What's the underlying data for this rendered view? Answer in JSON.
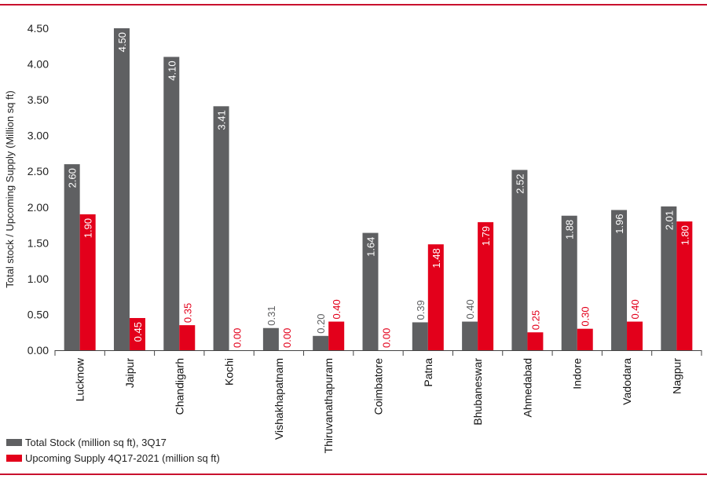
{
  "chart_data": {
    "type": "bar",
    "ylabel": "Total stock / Upcoming Supply  (Million sq ft)",
    "ylim": [
      0,
      4.5
    ],
    "yticks": [
      "0.00",
      "0.50",
      "1.00",
      "1.50",
      "2.00",
      "2.50",
      "3.00",
      "3.50",
      "4.00",
      "4.50"
    ],
    "categories": [
      "Lucknow",
      "Jaipur",
      "Chandigarh",
      "Kochi",
      "Vishakhapatnam",
      "Thiruvanathapuram",
      "Coimbatore",
      "Patna",
      "Bhubaneswar",
      "Ahmedabad",
      "Indore",
      "Vadodara",
      "Nagpur"
    ],
    "series": [
      {
        "name": "Total Stock (million sq ft), 3Q17",
        "color": "#5f6062",
        "values": [
          2.6,
          4.5,
          4.1,
          3.41,
          0.31,
          0.2,
          1.64,
          0.39,
          0.4,
          2.52,
          1.88,
          1.96,
          2.01
        ],
        "labels": [
          "2.60",
          "4.50",
          "4.10",
          "3.41",
          "0.31",
          "0.20",
          "1.64",
          "0.39",
          "0.40",
          "2.52",
          "1.88",
          "1.96",
          "2.01"
        ]
      },
      {
        "name": "Upcoming Supply 4Q17-2021 (million sq ft)",
        "color": "#e3001b",
        "values": [
          1.9,
          0.45,
          0.35,
          0.0,
          0.0,
          0.4,
          0.0,
          1.48,
          1.79,
          0.25,
          0.3,
          0.4,
          1.8
        ],
        "labels": [
          "1.90",
          "0.45",
          "0.35",
          "0.00",
          "0.00",
          "0.40",
          "0.00",
          "1.48",
          "1.79",
          "0.25",
          "0.30",
          "0.40",
          "1.80"
        ]
      }
    ],
    "legend_position": "bottom-left",
    "grid": false
  },
  "theme": {
    "rule_color": "#c8102e"
  }
}
